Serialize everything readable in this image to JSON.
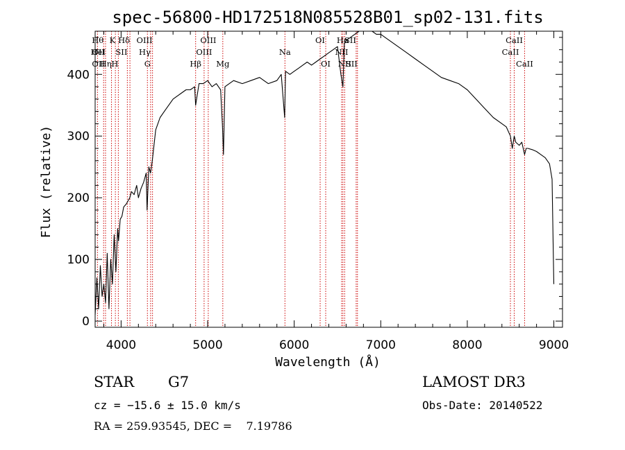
{
  "chart_data": {
    "type": "line",
    "title": "spec-56800-HD172518N085528B01_sp02-131.fits",
    "xlabel": "Wavelength (Å)",
    "ylabel": "Flux (relative)",
    "xlim": [
      3700,
      9100
    ],
    "ylim": [
      -10,
      470
    ],
    "x_ticks": [
      4000,
      5000,
      6000,
      7000,
      8000,
      9000
    ],
    "y_ticks": [
      0,
      100,
      200,
      300,
      400
    ],
    "grid": false,
    "series": [
      {
        "x": [
          3700,
          3720,
          3740,
          3760,
          3780,
          3800,
          3820,
          3840,
          3860,
          3880,
          3900,
          3920,
          3940,
          3960,
          3970,
          3990,
          4010,
          4030,
          4060,
          4080,
          4100,
          4120,
          4150,
          4180,
          4200,
          4230,
          4260,
          4290,
          4300,
          4320,
          4340,
          4360,
          4400,
          4450,
          4500,
          4550,
          4600,
          4650,
          4700,
          4750,
          4800,
          4850,
          4861,
          4900,
          4950,
          5000,
          5050,
          5100,
          5150,
          5170,
          5183,
          5200,
          5250,
          5300,
          5400,
          5500,
          5600,
          5700,
          5800,
          5850,
          5890,
          5900,
          5950,
          6000,
          6050,
          6100,
          6150,
          6200,
          6250,
          6300,
          6350,
          6400,
          6450,
          6500,
          6540,
          6563,
          6580,
          6600,
          6650,
          6700,
          6750,
          6800,
          6850,
          6900,
          6950,
          7000,
          7050,
          7100,
          7200,
          7300,
          7400,
          7500,
          7600,
          7700,
          7800,
          7900,
          8000,
          8100,
          8200,
          8300,
          8400,
          8450,
          8498,
          8520,
          8542,
          8560,
          8600,
          8630,
          8662,
          8680,
          8700,
          8750,
          8800,
          8850,
          8900,
          8950,
          8980,
          8990,
          9000
        ],
        "y": [
          10,
          70,
          20,
          90,
          40,
          60,
          30,
          110,
          20,
          100,
          60,
          140,
          80,
          150,
          130,
          165,
          170,
          185,
          190,
          195,
          200,
          210,
          205,
          220,
          200,
          215,
          225,
          240,
          180,
          250,
          240,
          260,
          310,
          330,
          340,
          350,
          360,
          365,
          370,
          375,
          375,
          380,
          350,
          385,
          385,
          390,
          380,
          385,
          375,
          320,
          270,
          380,
          385,
          390,
          385,
          390,
          395,
          385,
          390,
          400,
          330,
          405,
          400,
          405,
          410,
          415,
          420,
          415,
          420,
          425,
          430,
          435,
          440,
          445,
          400,
          380,
          450,
          455,
          460,
          465,
          470,
          470,
          470,
          470,
          465,
          465,
          460,
          455,
          445,
          435,
          425,
          415,
          405,
          395,
          390,
          385,
          375,
          360,
          345,
          330,
          320,
          315,
          300,
          280,
          300,
          290,
          285,
          290,
          270,
          280,
          280,
          278,
          275,
          270,
          265,
          255,
          230,
          140,
          60
        ]
      }
    ],
    "lines": [
      {
        "wl": 3727,
        "label": "OII",
        "row": 2,
        "pos": "right"
      },
      {
        "wl": 3727,
        "label": "OII",
        "row": 3,
        "pos": "right"
      },
      {
        "wl": 3798,
        "label": "Hθ",
        "row": 1,
        "pos": "left"
      },
      {
        "wl": 3820,
        "label": "HeI",
        "row": 2,
        "pos": "left"
      },
      {
        "wl": 3889,
        "label": "Hη",
        "row": 3,
        "pos": "left"
      },
      {
        "wl": 3934,
        "label": "K",
        "row": 1,
        "pos": "left"
      },
      {
        "wl": 3968,
        "label": "H",
        "row": 3,
        "pos": "left"
      },
      {
        "wl": 4072,
        "label": "SII",
        "row": 2,
        "pos": "left"
      },
      {
        "wl": 4102,
        "label": "Hδ",
        "row": 1,
        "pos": "left"
      },
      {
        "wl": 4304,
        "label": "G",
        "row": 3,
        "pos": "center"
      },
      {
        "wl": 4341,
        "label": "Hγ",
        "row": 2,
        "pos": "left"
      },
      {
        "wl": 4363,
        "label": "OIII",
        "row": 1,
        "pos": "left"
      },
      {
        "wl": 4861,
        "label": "Hβ",
        "row": 3,
        "pos": "center"
      },
      {
        "wl": 4959,
        "label": "OIII",
        "row": 2,
        "pos": "center"
      },
      {
        "wl": 5007,
        "label": "OIII",
        "row": 1,
        "pos": "center"
      },
      {
        "wl": 5175,
        "label": "Mg",
        "row": 3,
        "pos": "center"
      },
      {
        "wl": 5893,
        "label": "Na",
        "row": 2,
        "pos": "center"
      },
      {
        "wl": 6300,
        "label": "OI",
        "row": 1,
        "pos": "center"
      },
      {
        "wl": 6364,
        "label": "OI",
        "row": 3,
        "pos": "center"
      },
      {
        "wl": 6548,
        "label": "NII",
        "row": 2,
        "pos": "center"
      },
      {
        "wl": 6563,
        "label": "Hα",
        "row": 1,
        "pos": "center"
      },
      {
        "wl": 6583,
        "label": "NII",
        "row": 3,
        "pos": "center"
      },
      {
        "wl": 6716,
        "label": "SII",
        "row": 1,
        "pos": "left"
      },
      {
        "wl": 6731,
        "label": "SII",
        "row": 3,
        "pos": "left"
      },
      {
        "wl": 8498,
        "label": "CaII",
        "row": 2,
        "pos": "center"
      },
      {
        "wl": 8542,
        "label": "CaII",
        "row": 1,
        "pos": "center"
      },
      {
        "wl": 8662,
        "label": "CaII",
        "row": 3,
        "pos": "center"
      }
    ]
  },
  "info": {
    "class": "STAR",
    "subclass": "G7",
    "survey": "LAMOST DR3",
    "redshift": "cz = −15.6 ± 15.0 km/s",
    "obs_date": "Obs-Date: 20140522",
    "coords": "RA = 259.93545, DEC =    7.19786"
  },
  "colors": {
    "spectrum": "#000000",
    "line_markers": "#cc0000",
    "axes": "#000000"
  }
}
